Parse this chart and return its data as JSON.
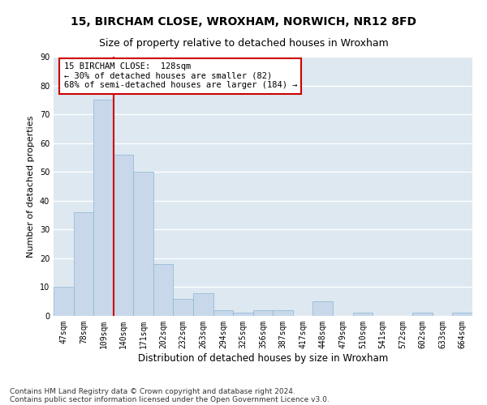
{
  "title1": "15, BIRCHAM CLOSE, WROXHAM, NORWICH, NR12 8FD",
  "title2": "Size of property relative to detached houses in Wroxham",
  "xlabel": "Distribution of detached houses by size in Wroxham",
  "ylabel": "Number of detached properties",
  "bar_color": "#c8d8ea",
  "bar_edge_color": "#8ab4d4",
  "vline_color": "#cc0000",
  "vline_x": 2.5,
  "categories": [
    "47sqm",
    "78sqm",
    "109sqm",
    "140sqm",
    "171sqm",
    "202sqm",
    "232sqm",
    "263sqm",
    "294sqm",
    "325sqm",
    "356sqm",
    "387sqm",
    "417sqm",
    "448sqm",
    "479sqm",
    "510sqm",
    "541sqm",
    "572sqm",
    "602sqm",
    "633sqm",
    "664sqm"
  ],
  "values": [
    10,
    36,
    75,
    56,
    50,
    18,
    6,
    8,
    2,
    1,
    2,
    2,
    0,
    5,
    0,
    1,
    0,
    0,
    1,
    0,
    1
  ],
  "ylim": [
    0,
    90
  ],
  "yticks": [
    0,
    10,
    20,
    30,
    40,
    50,
    60,
    70,
    80,
    90
  ],
  "annotation_text": "15 BIRCHAM CLOSE:  128sqm\n← 30% of detached houses are smaller (82)\n68% of semi-detached houses are larger (184) →",
  "annotation_box_color": "#ffffff",
  "annotation_box_edge_color": "#cc0000",
  "footer1": "Contains HM Land Registry data © Crown copyright and database right 2024.",
  "footer2": "Contains public sector information licensed under the Open Government Licence v3.0.",
  "background_color": "#dde8f0",
  "grid_color": "#ffffff",
  "title_fontsize": 10,
  "subtitle_fontsize": 9,
  "tick_fontsize": 7,
  "ylabel_fontsize": 8,
  "xlabel_fontsize": 8.5,
  "footer_fontsize": 6.5,
  "annotation_fontsize": 7.5
}
